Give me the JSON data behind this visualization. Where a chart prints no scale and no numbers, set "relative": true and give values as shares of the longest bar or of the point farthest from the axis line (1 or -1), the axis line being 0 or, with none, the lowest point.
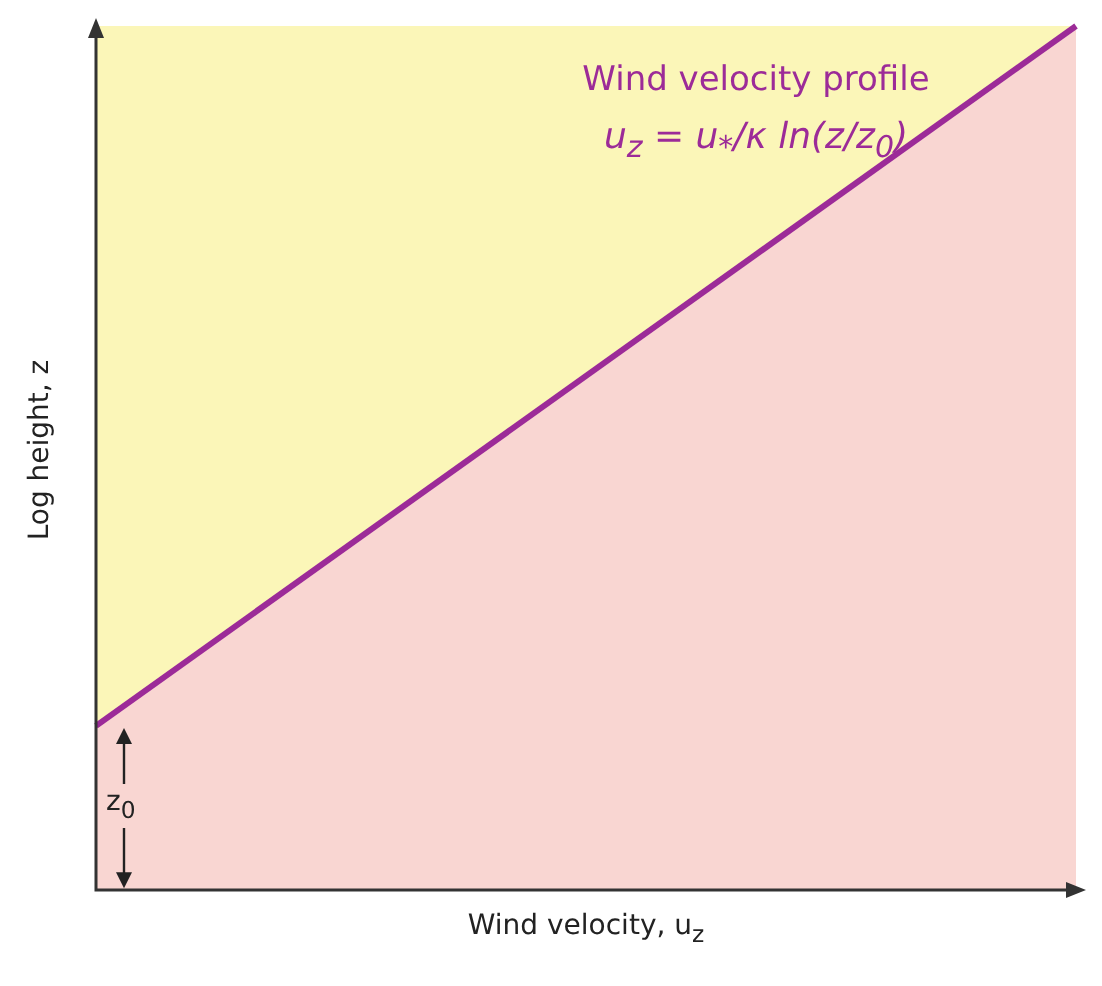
{
  "chart_data": {
    "type": "area",
    "title": "Wind velocity profile",
    "xlabel": "Wind velocity, u$_{z}$",
    "ylabel": "Log height, z",
    "relative": true,
    "categories": [
      null,
      null
    ],
    "series": [
      {
        "color": "#9c2b98",
        "values": [
          0.19,
          1
        ]
      }
    ],
    "annotations": [
      "u$_{z}$ = u$_{*}$/κ ln(z/z$_{0}$)",
      "z$_{0}$"
    ],
    "legend": false
  }
}
